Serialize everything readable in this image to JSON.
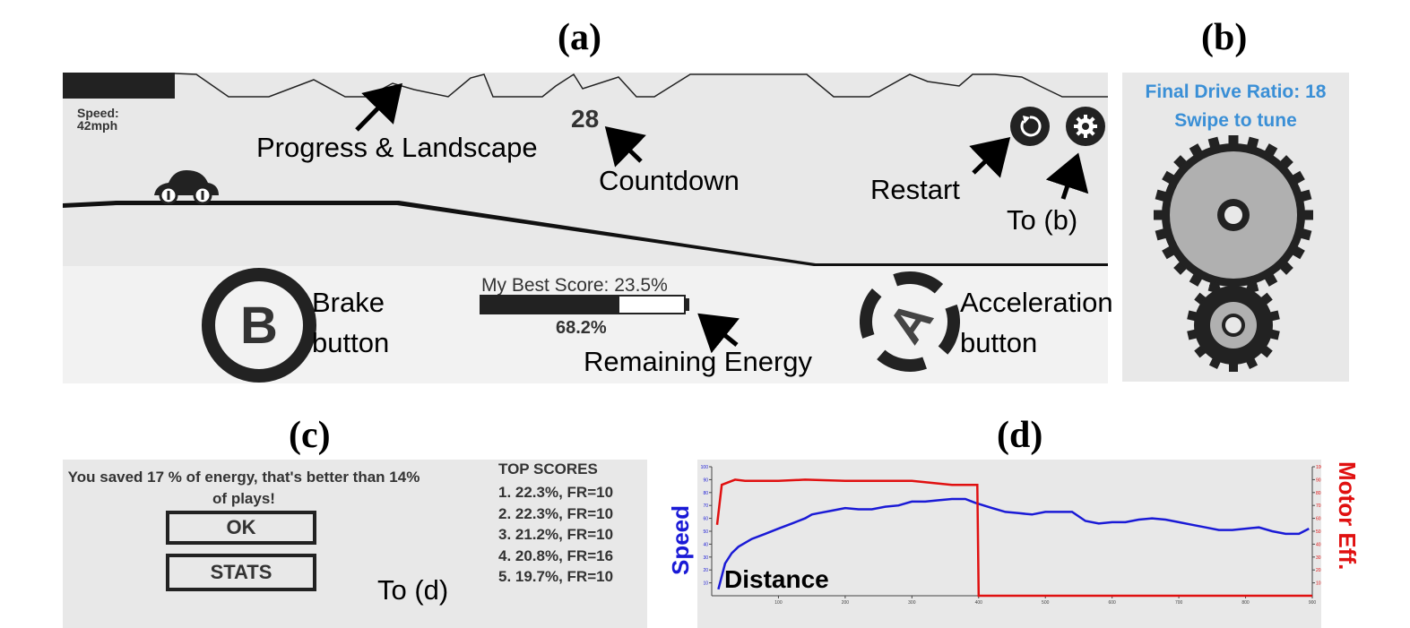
{
  "panels": {
    "a": "(a)",
    "b": "(b)",
    "c": "(c)",
    "d": "(d)"
  },
  "game": {
    "speed_label": "Speed:",
    "speed_value": "42mph",
    "countdown": "28",
    "best_score": "My Best Score: 23.5%",
    "energy_percent_text": "68.2%",
    "energy_fill": 0.682,
    "brake_letter": "B",
    "accel_letter": "A",
    "icons": {
      "restart": "restart-icon",
      "settings": "gear-icon",
      "car": "car-icon"
    }
  },
  "annotations": {
    "progress": "Progress & Landscape",
    "countdown": "Countdown",
    "restart": "Restart",
    "to_b": "To (b)",
    "brake_1": "Brake",
    "brake_2": "button",
    "remaining": "Remaining Energy",
    "accel_1": "Acceleration",
    "accel_2": "button",
    "to_d": "To (d)"
  },
  "tuning": {
    "line1": "Final Drive Ratio: 18",
    "line2": "Swipe to tune",
    "color": "#3a8fd6"
  },
  "results": {
    "message": "You saved 17 % of energy, that's better than 14% of plays!",
    "ok_label": "OK",
    "stats_label": "STATS",
    "top_title": "TOP SCORES",
    "top_scores": [
      "1. 22.3%, FR=10",
      "2. 22.3%, FR=10",
      "3. 21.2%, FR=10",
      "4. 20.8%, FR=16",
      "5. 19.7%, FR=10"
    ]
  },
  "chart_data": {
    "type": "line",
    "xlabel": "Distance",
    "ylabel_left": "Speed",
    "ylabel_right": "Motor Eff.",
    "xlim": [
      0,
      900
    ],
    "ylim": [
      0,
      100
    ],
    "x_ticks": [
      "100",
      "200",
      "300",
      "400",
      "500",
      "600",
      "700",
      "800",
      "900"
    ],
    "y_ticks": [
      "10",
      "20",
      "30",
      "40",
      "50",
      "60",
      "70",
      "80",
      "90",
      "100"
    ],
    "series": [
      {
        "name": "Speed",
        "color": "#1a1ad6",
        "x": [
          10,
          20,
          30,
          40,
          60,
          80,
          100,
          120,
          140,
          150,
          160,
          180,
          200,
          220,
          240,
          260,
          280,
          300,
          320,
          340,
          360,
          380,
          395,
          420,
          440,
          460,
          480,
          500,
          520,
          540,
          560,
          580,
          600,
          620,
          640,
          660,
          680,
          700,
          720,
          740,
          760,
          780,
          800,
          820,
          840,
          860,
          880,
          895
        ],
        "y": [
          5,
          25,
          33,
          38,
          44,
          48,
          52,
          56,
          60,
          63,
          64,
          66,
          68,
          67,
          67,
          69,
          70,
          73,
          73,
          74,
          75,
          75,
          72,
          68,
          65,
          64,
          63,
          65,
          65,
          65,
          58,
          56,
          57,
          57,
          59,
          60,
          59,
          57,
          55,
          53,
          51,
          51,
          52,
          53,
          50,
          48,
          48,
          52
        ]
      },
      {
        "name": "Motor Eff.",
        "color": "#e01010",
        "x": [
          8,
          15,
          35,
          50,
          100,
          140,
          200,
          250,
          300,
          320,
          340,
          360,
          380,
          395,
          398,
          400,
          410,
          500,
          600,
          700,
          800,
          900
        ],
        "y": [
          55,
          86,
          90,
          89,
          89,
          90,
          89,
          89,
          89,
          88,
          87,
          86,
          86,
          86,
          86,
          0,
          0,
          0,
          0,
          0,
          0,
          0
        ]
      }
    ]
  }
}
